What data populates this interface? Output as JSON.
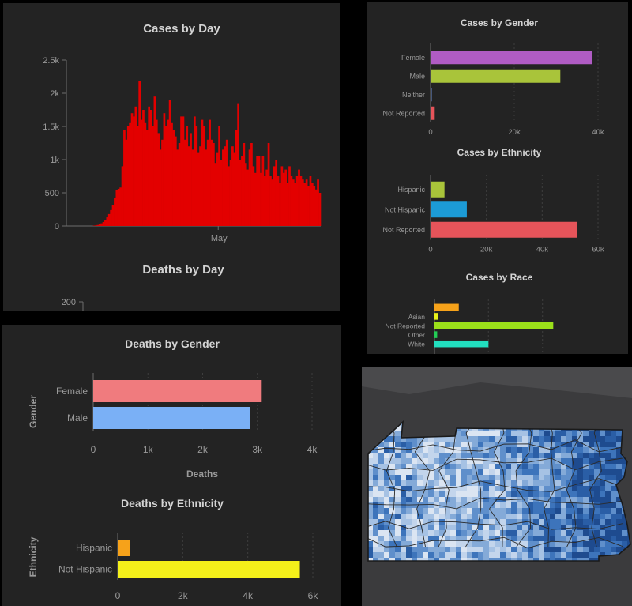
{
  "colors": {
    "cases_day": "#e30000",
    "female_cases": "#b05cc4",
    "male_cases": "#a9c43a",
    "neither_cases": "#6a8bd0",
    "not_reported_cases": "#e6545a",
    "hispanic_cases": "#a9c43a",
    "not_hispanic_cases": "#1c9bd6",
    "not_reported_eth_cases": "#e6545a",
    "asian": "#f6a21a",
    "unknown_race": "#e8f01a",
    "not_reported_race": "#9be01a",
    "other_race": "#22cc55",
    "white": "#22e0c0",
    "female_deaths": "#f07b7e",
    "male_deaths": "#7ab0f6",
    "hispanic_deaths": "#f6a21a",
    "not_hispanic_deaths": "#f4f01a"
  },
  "chart_data": [
    {
      "id": "cases_by_day",
      "type": "bar",
      "title": "Cases by Day",
      "xlabel": "",
      "ylabel": "",
      "ylim": [
        0,
        2500
      ],
      "yticks": [
        "0",
        "500",
        "1k",
        "1.5k",
        "2k",
        "2.5k"
      ],
      "xtick_labels": [
        "May"
      ],
      "values": [
        0,
        0,
        0,
        0,
        0,
        0,
        0,
        0,
        0,
        0,
        0,
        0,
        0,
        0,
        5,
        8,
        15,
        25,
        40,
        60,
        90,
        130,
        180,
        240,
        320,
        420,
        540,
        560,
        580,
        900,
        1450,
        1300,
        1500,
        1550,
        1700,
        1650,
        1800,
        1500,
        2180,
        1600,
        1750,
        1550,
        1450,
        1800,
        1750,
        1500,
        1950,
        1600,
        1400,
        1150,
        1300,
        1700,
        1500,
        1600,
        1900,
        1550,
        1450,
        1350,
        1150,
        1250,
        1650,
        1650,
        1300,
        1500,
        1200,
        1400,
        1150,
        1650,
        1500,
        1100,
        1200,
        1600,
        1500,
        1150,
        1300,
        1600,
        1300,
        1250,
        950,
        1100,
        1500,
        1000,
        1150,
        1200,
        1300,
        900,
        1000,
        1200,
        1100,
        1450,
        1850,
        1000,
        1050,
        1250,
        950,
        850,
        1150,
        1250,
        900,
        800,
        1050,
        1050,
        800,
        1050,
        750,
        850,
        1250,
        750,
        700,
        900,
        1000,
        750,
        650,
        900,
        800,
        850,
        650,
        900,
        750,
        700,
        650,
        750,
        850,
        750,
        700,
        650,
        700,
        600,
        750,
        650,
        600,
        550,
        700,
        500
      ]
    },
    {
      "id": "deaths_by_day",
      "type": "bar",
      "title": "Deaths by Day",
      "yticks": [
        "200"
      ],
      "values": []
    },
    {
      "id": "cases_by_gender",
      "type": "bar",
      "orientation": "horizontal",
      "title": "Cases by Gender",
      "categories": [
        "Female",
        "Male",
        "Neither",
        "Not Reported"
      ],
      "values": [
        38500,
        31000,
        100,
        1000
      ],
      "xlim": [
        0,
        40000
      ],
      "xticks": [
        "0",
        "20k",
        "40k"
      ]
    },
    {
      "id": "cases_by_ethnicity",
      "type": "bar",
      "orientation": "horizontal",
      "title": "Cases by Ethnicity",
      "categories": [
        "Hispanic",
        "Not Hispanic",
        "Not Reported"
      ],
      "values": [
        5000,
        13000,
        52500
      ],
      "xlim": [
        0,
        60000
      ],
      "xticks": [
        "0",
        "20k",
        "40k",
        "60k"
      ]
    },
    {
      "id": "cases_by_race",
      "type": "bar",
      "orientation": "horizontal",
      "title": "Cases by Race",
      "categories": [
        "",
        "Asian",
        "Not Reported",
        "Other",
        "White"
      ],
      "values": [
        4500,
        700,
        22000,
        500,
        10000
      ]
    },
    {
      "id": "deaths_by_gender",
      "type": "bar",
      "orientation": "horizontal",
      "title": "Deaths by Gender",
      "categories": [
        "Female",
        "Male"
      ],
      "values": [
        3080,
        2870
      ],
      "xlim": [
        0,
        4000
      ],
      "xticks": [
        "0",
        "1k",
        "2k",
        "3k",
        "4k"
      ],
      "xlabel": "Deaths",
      "ylabel": "Gender"
    },
    {
      "id": "deaths_by_ethnicity",
      "type": "bar",
      "orientation": "horizontal",
      "title": "Deaths by Ethnicity",
      "categories": [
        "Hispanic",
        "Not Hispanic"
      ],
      "values": [
        380,
        5600
      ],
      "xlim": [
        0,
        6000
      ],
      "xticks": [
        "0",
        "2k",
        "4k",
        "6k"
      ],
      "ylabel": "Ethnicity"
    }
  ],
  "map": {
    "region": "Pennsylvania county choropleth"
  }
}
